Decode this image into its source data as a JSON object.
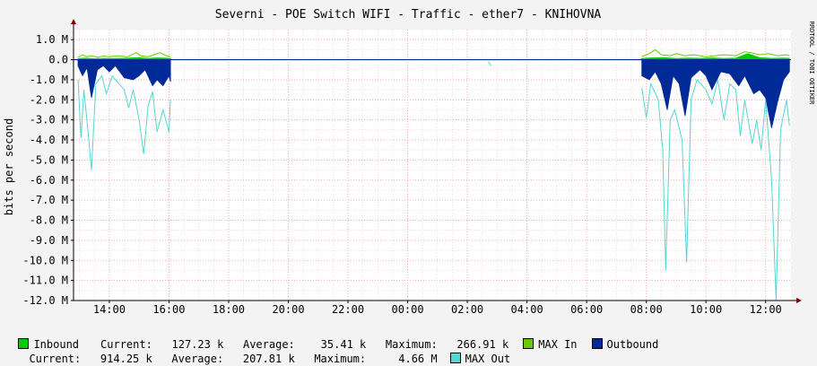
{
  "chart_data": {
    "type": "area",
    "title": "Severni - POE Switch WIFI - Traffic - ether7 - KNIHOVNA",
    "ylabel": "bits per second",
    "watermark": "RRDTOOL / TOBI OETIKER",
    "ylim": [
      -12000000,
      1500000
    ],
    "y_ticks": [
      {
        "value": 1000000,
        "label": "1.0 M"
      },
      {
        "value": 0,
        "label": "0.0"
      },
      {
        "value": -1000000,
        "label": "-1.0 M"
      },
      {
        "value": -2000000,
        "label": "-2.0 M"
      },
      {
        "value": -3000000,
        "label": "-3.0 M"
      },
      {
        "value": -4000000,
        "label": "-4.0 M"
      },
      {
        "value": -5000000,
        "label": "-5.0 M"
      },
      {
        "value": -6000000,
        "label": "-6.0 M"
      },
      {
        "value": -7000000,
        "label": "-7.0 M"
      },
      {
        "value": -8000000,
        "label": "-8.0 M"
      },
      {
        "value": -9000000,
        "label": "-9.0 M"
      },
      {
        "value": -10000000,
        "label": "-10.0 M"
      },
      {
        "value": -11000000,
        "label": "-11.0 M"
      },
      {
        "value": -12000000,
        "label": "-12.0 M"
      }
    ],
    "x_range_hours": [
      12.8,
      36.85
    ],
    "x_ticks": [
      {
        "hour": 14,
        "label": "14:00"
      },
      {
        "hour": 16,
        "label": "16:00"
      },
      {
        "hour": 18,
        "label": "18:00"
      },
      {
        "hour": 20,
        "label": "20:00"
      },
      {
        "hour": 22,
        "label": "22:00"
      },
      {
        "hour": 24,
        "label": "00:00"
      },
      {
        "hour": 26,
        "label": "02:00"
      },
      {
        "hour": 28,
        "label": "04:00"
      },
      {
        "hour": 30,
        "label": "06:00"
      },
      {
        "hour": 32,
        "label": "08:00"
      },
      {
        "hour": 34,
        "label": "10:00"
      },
      {
        "hour": 36,
        "label": "12:00"
      }
    ],
    "colors": {
      "inbound": "#00cc00",
      "max_in": "#66cc00",
      "outbound": "#002a97",
      "max_out": "#55d6d3",
      "grid": "#ff9a9a",
      "zero": "#000000",
      "axis_arrow": "#800000"
    },
    "series": [
      {
        "name": "Inbound",
        "values": [
          [
            12.95,
            0.06
          ],
          [
            13.2,
            0.08
          ],
          [
            13.5,
            0.05
          ],
          [
            13.8,
            0.07
          ],
          [
            14.2,
            0.06
          ],
          [
            14.6,
            0.08
          ],
          [
            15.0,
            0.1
          ],
          [
            15.3,
            0.07
          ],
          [
            15.6,
            0.09
          ],
          [
            15.9,
            0.08
          ],
          [
            16.05,
            0.06
          ],
          [
            16.1,
            0
          ],
          [
            31.8,
            0
          ],
          [
            31.85,
            0.07
          ],
          [
            32.2,
            0.09
          ],
          [
            32.6,
            0.1
          ],
          [
            33.0,
            0.06
          ],
          [
            33.4,
            0.08
          ],
          [
            33.8,
            0.07
          ],
          [
            34.2,
            0.09
          ],
          [
            34.6,
            0.06
          ],
          [
            35.0,
            0.08
          ],
          [
            35.4,
            0.3
          ],
          [
            35.8,
            0.1
          ],
          [
            36.2,
            0.07
          ],
          [
            36.6,
            0.08
          ],
          [
            36.8,
            0.07
          ]
        ]
      },
      {
        "name": "MAX In",
        "values": [
          [
            12.95,
            0.12
          ],
          [
            13.1,
            0.25
          ],
          [
            13.25,
            0.15
          ],
          [
            13.4,
            0.2
          ],
          [
            13.6,
            0.12
          ],
          [
            13.8,
            0.18
          ],
          [
            14.0,
            0.15
          ],
          [
            14.3,
            0.2
          ],
          [
            14.6,
            0.14
          ],
          [
            14.9,
            0.35
          ],
          [
            15.05,
            0.2
          ],
          [
            15.3,
            0.15
          ],
          [
            15.5,
            0.25
          ],
          [
            15.7,
            0.35
          ],
          [
            15.9,
            0.2
          ],
          [
            16.05,
            0.15
          ],
          [
            31.85,
            0.15
          ],
          [
            32.1,
            0.3
          ],
          [
            32.3,
            0.5
          ],
          [
            32.5,
            0.25
          ],
          [
            32.8,
            0.2
          ],
          [
            33.0,
            0.3
          ],
          [
            33.3,
            0.2
          ],
          [
            33.6,
            0.25
          ],
          [
            34.0,
            0.15
          ],
          [
            34.3,
            0.2
          ],
          [
            34.6,
            0.25
          ],
          [
            35.0,
            0.2
          ],
          [
            35.3,
            0.4
          ],
          [
            35.5,
            0.35
          ],
          [
            35.8,
            0.25
          ],
          [
            36.1,
            0.3
          ],
          [
            36.4,
            0.2
          ],
          [
            36.7,
            0.25
          ],
          [
            36.8,
            0.2
          ]
        ]
      },
      {
        "name": "Outbound",
        "values": [
          [
            12.95,
            -0.3
          ],
          [
            13.1,
            -0.8
          ],
          [
            13.25,
            -0.4
          ],
          [
            13.4,
            -1.9
          ],
          [
            13.6,
            -0.5
          ],
          [
            13.8,
            -0.3
          ],
          [
            14.0,
            -0.6
          ],
          [
            14.2,
            -0.3
          ],
          [
            14.5,
            -0.9
          ],
          [
            14.8,
            -1.0
          ],
          [
            15.0,
            -0.8
          ],
          [
            15.2,
            -0.5
          ],
          [
            15.45,
            -1.3
          ],
          [
            15.6,
            -1.0
          ],
          [
            15.8,
            -1.3
          ],
          [
            16.0,
            -0.8
          ],
          [
            16.05,
            -1.1
          ],
          [
            31.85,
            -0.8
          ],
          [
            32.1,
            -1.0
          ],
          [
            32.3,
            -0.6
          ],
          [
            32.5,
            -1.2
          ],
          [
            32.7,
            -2.5
          ],
          [
            32.9,
            -0.8
          ],
          [
            33.1,
            -1.2
          ],
          [
            33.3,
            -2.8
          ],
          [
            33.5,
            -0.9
          ],
          [
            33.8,
            -0.5
          ],
          [
            34.0,
            -0.8
          ],
          [
            34.2,
            -1.5
          ],
          [
            34.5,
            -0.6
          ],
          [
            34.8,
            -0.7
          ],
          [
            35.1,
            -1.3
          ],
          [
            35.3,
            -0.8
          ],
          [
            35.6,
            -1.7
          ],
          [
            35.8,
            -1.5
          ],
          [
            36.0,
            -1.9
          ],
          [
            36.2,
            -3.4
          ],
          [
            36.4,
            -2.1
          ],
          [
            36.6,
            -1.0
          ],
          [
            36.8,
            -0.6
          ]
        ]
      },
      {
        "name": "MAX Out",
        "values": [
          [
            12.95,
            -1.0
          ],
          [
            13.05,
            -3.9
          ],
          [
            13.15,
            -1.5
          ],
          [
            13.3,
            -3.8
          ],
          [
            13.4,
            -5.5
          ],
          [
            13.55,
            -1.2
          ],
          [
            13.75,
            -0.8
          ],
          [
            13.9,
            -1.7
          ],
          [
            14.1,
            -0.8
          ],
          [
            14.5,
            -1.5
          ],
          [
            14.65,
            -2.4
          ],
          [
            14.8,
            -1.5
          ],
          [
            15.0,
            -3.0
          ],
          [
            15.15,
            -4.7
          ],
          [
            15.3,
            -2.3
          ],
          [
            15.45,
            -1.6
          ],
          [
            15.6,
            -3.6
          ],
          [
            15.8,
            -2.5
          ],
          [
            16.0,
            -3.6
          ],
          [
            16.05,
            -2.0
          ],
          [
            26.7,
            -0.1
          ],
          [
            26.8,
            -0.3
          ],
          [
            31.85,
            -1.4
          ],
          [
            32.0,
            -2.9
          ],
          [
            32.15,
            -1.2
          ],
          [
            32.4,
            -2.0
          ],
          [
            32.55,
            -4.5
          ],
          [
            32.65,
            -10.5
          ],
          [
            32.8,
            -3.0
          ],
          [
            32.95,
            -2.5
          ],
          [
            33.2,
            -4.0
          ],
          [
            33.35,
            -10.1
          ],
          [
            33.5,
            -2.0
          ],
          [
            33.7,
            -1.0
          ],
          [
            34.0,
            -1.5
          ],
          [
            34.2,
            -2.2
          ],
          [
            34.4,
            -1.0
          ],
          [
            34.6,
            -3.0
          ],
          [
            34.8,
            -1.2
          ],
          [
            35.0,
            -1.5
          ],
          [
            35.15,
            -3.8
          ],
          [
            35.3,
            -2.0
          ],
          [
            35.55,
            -4.2
          ],
          [
            35.7,
            -3.0
          ],
          [
            35.85,
            -4.5
          ],
          [
            36.0,
            -2.0
          ],
          [
            36.2,
            -6.0
          ],
          [
            36.35,
            -12.0
          ],
          [
            36.5,
            -3.5
          ],
          [
            36.7,
            -2.0
          ],
          [
            36.8,
            -3.3
          ]
        ]
      }
    ],
    "legend": {
      "inbound_label": "Inbound",
      "in_stats": "Current:   127.23 k   Average:    35.41 k   Maximum:   266.91 k",
      "max_in_label": "MAX In",
      "outbound_label": "Outbound",
      "out_stats": "Current:   914.25 k   Average:   207.81 k   Maximum:     4.66 M",
      "max_out_label": "MAX Out"
    }
  }
}
